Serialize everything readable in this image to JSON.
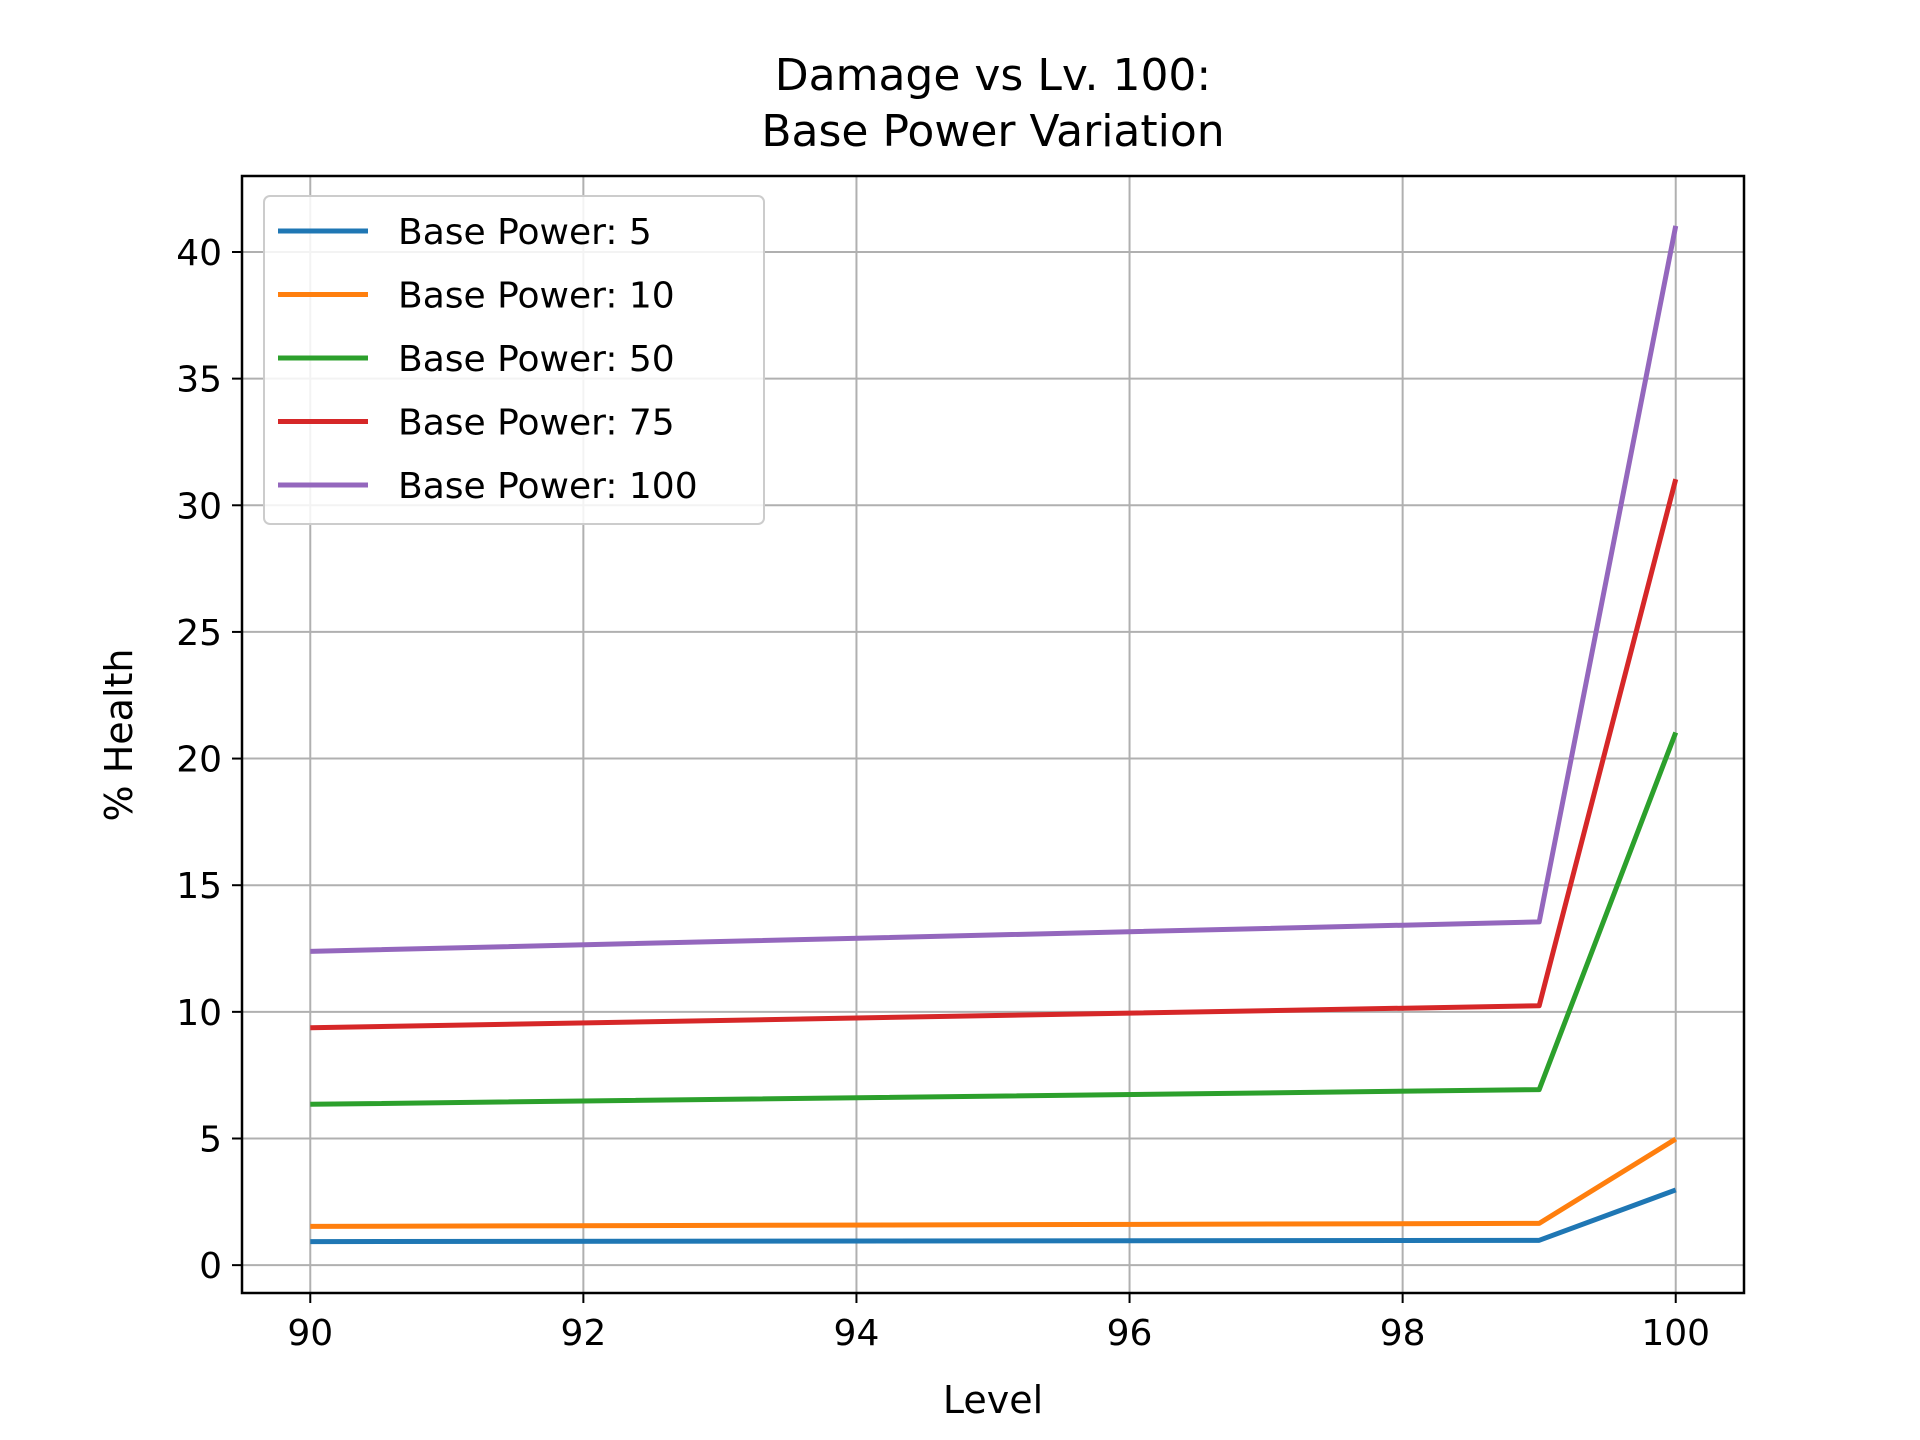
{
  "chart_data": {
    "type": "line",
    "title_line1": "Damage vs Lv. 100:",
    "title_line2": "Base Power Variation",
    "xlabel": "Level",
    "ylabel": "% Health",
    "x": [
      90,
      99,
      100
    ],
    "xlim": [
      89.5,
      100.5
    ],
    "ylim": [
      -1.1,
      43
    ],
    "xticks": [
      90,
      92,
      94,
      96,
      98,
      100
    ],
    "yticks": [
      0,
      5,
      10,
      15,
      20,
      25,
      30,
      35,
      40
    ],
    "grid": true,
    "legend_position": "upper-left",
    "series": [
      {
        "name": "Base Power: 5",
        "color": "#1f77b4",
        "values": [
          0.93,
          0.98,
          2.97
        ]
      },
      {
        "name": "Base Power: 10",
        "color": "#ff7f0e",
        "values": [
          1.53,
          1.65,
          4.98
        ]
      },
      {
        "name": "Base Power: 50",
        "color": "#2ca02c",
        "values": [
          6.35,
          6.93,
          21.03
        ]
      },
      {
        "name": "Base Power: 75",
        "color": "#d62728",
        "values": [
          9.37,
          10.24,
          31.03
        ]
      },
      {
        "name": "Base Power: 100",
        "color": "#9467bd",
        "values": [
          12.39,
          13.55,
          41.03
        ]
      }
    ]
  }
}
